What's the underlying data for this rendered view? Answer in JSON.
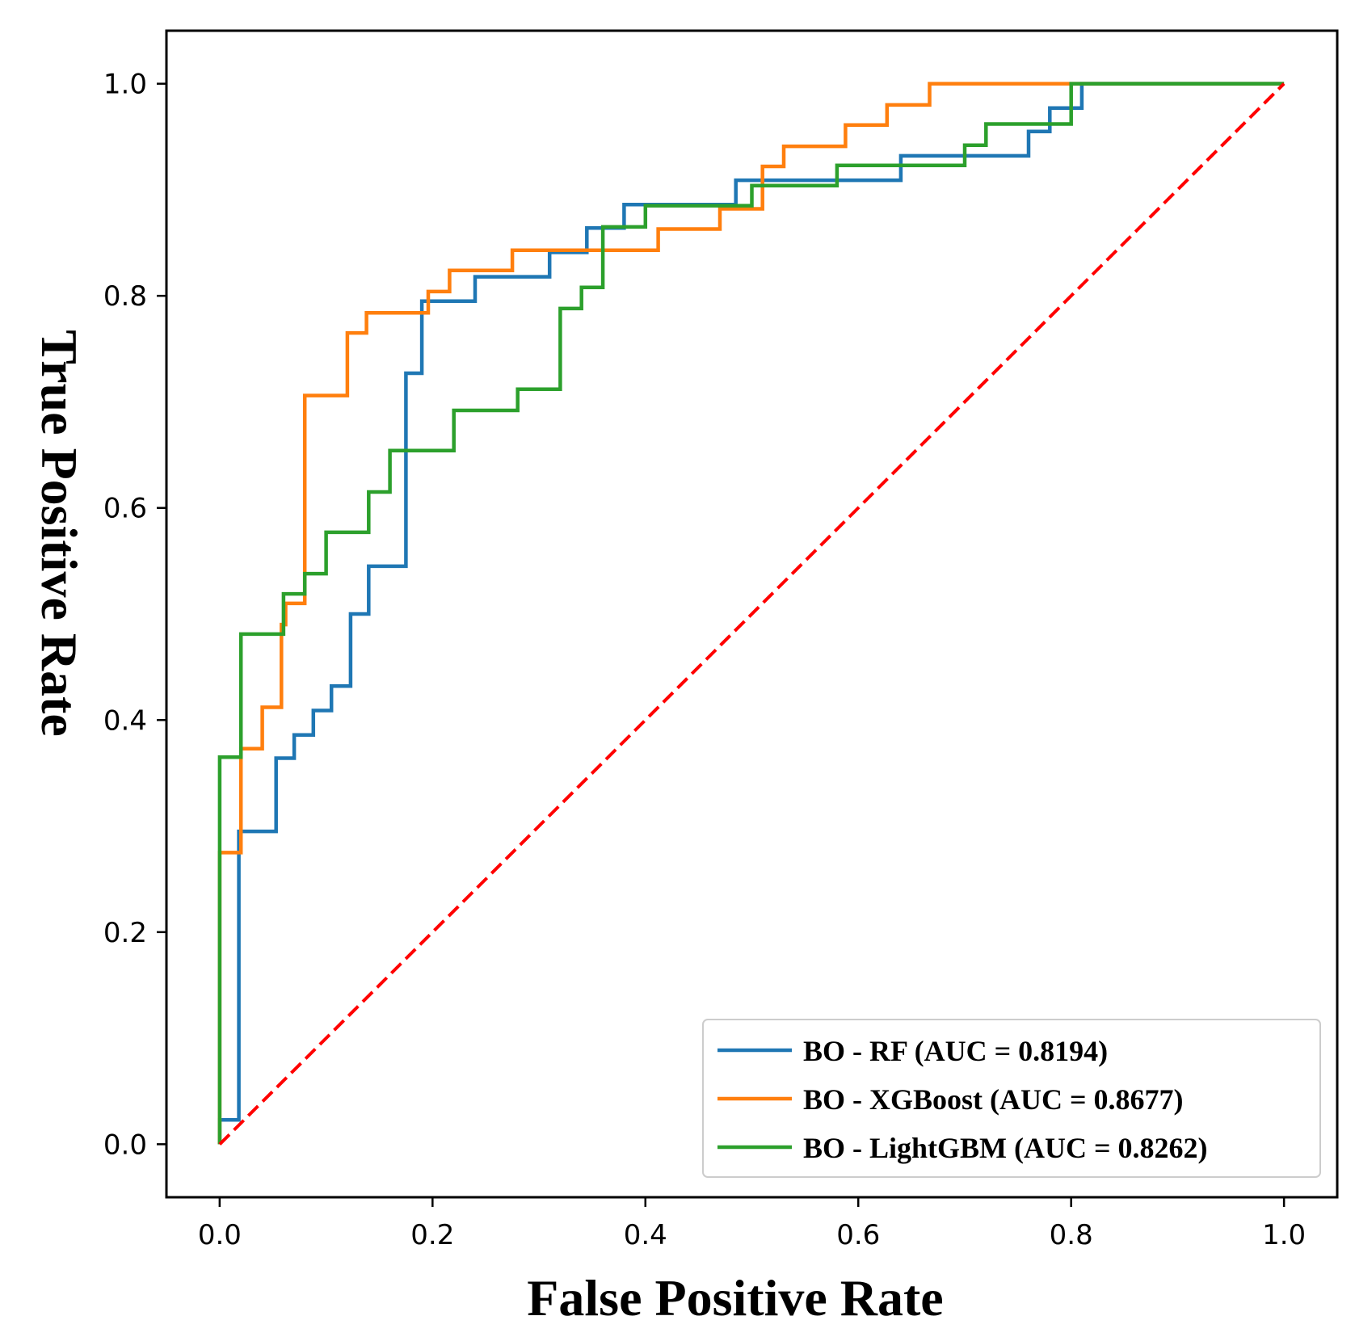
{
  "chart_data": {
    "type": "line",
    "title": "",
    "xlabel": "False Positive Rate",
    "ylabel": "True Positive Rate",
    "xlim": [
      -0.05,
      1.05
    ],
    "ylim": [
      -0.05,
      1.05
    ],
    "xticks": [
      0.0,
      0.2,
      0.4,
      0.6,
      0.8,
      1.0
    ],
    "yticks": [
      0.0,
      0.2,
      0.4,
      0.6,
      0.8,
      1.0
    ],
    "xtick_labels": [
      "0.0",
      "0.2",
      "0.4",
      "0.6",
      "0.8",
      "1.0"
    ],
    "ytick_labels": [
      "0.0",
      "0.2",
      "0.4",
      "0.6",
      "0.8",
      "1.0"
    ],
    "grid": false,
    "legend_position": "bottom-right",
    "series": [
      {
        "name": "BO - RF (AUC = 0.8194)",
        "color": "#1f77b4",
        "style": "solid",
        "x": [
          0.0,
          0.0,
          0.018,
          0.018,
          0.053,
          0.053,
          0.07,
          0.07,
          0.088,
          0.088,
          0.105,
          0.105,
          0.123,
          0.123,
          0.14,
          0.14,
          0.175,
          0.175,
          0.19,
          0.19,
          0.24,
          0.24,
          0.31,
          0.31,
          0.345,
          0.345,
          0.38,
          0.38,
          0.485,
          0.485,
          0.64,
          0.64,
          0.76,
          0.76,
          0.78,
          0.78,
          0.81,
          0.81,
          1.0
        ],
        "y": [
          0.0,
          0.023,
          0.023,
          0.295,
          0.295,
          0.364,
          0.364,
          0.386,
          0.386,
          0.409,
          0.409,
          0.432,
          0.432,
          0.5,
          0.5,
          0.545,
          0.545,
          0.727,
          0.727,
          0.795,
          0.795,
          0.818,
          0.818,
          0.841,
          0.841,
          0.864,
          0.864,
          0.886,
          0.886,
          0.909,
          0.909,
          0.932,
          0.932,
          0.955,
          0.955,
          0.977,
          0.977,
          1.0,
          1.0
        ]
      },
      {
        "name": "BO - XGBoost (AUC = 0.8677)",
        "color": "#ff7f0e",
        "style": "solid",
        "x": [
          0.0,
          0.0,
          0.02,
          0.02,
          0.04,
          0.04,
          0.058,
          0.058,
          0.062,
          0.062,
          0.08,
          0.08,
          0.12,
          0.12,
          0.138,
          0.138,
          0.196,
          0.196,
          0.216,
          0.216,
          0.275,
          0.275,
          0.412,
          0.412,
          0.47,
          0.47,
          0.51,
          0.51,
          0.53,
          0.53,
          0.588,
          0.588,
          0.627,
          0.627,
          0.667,
          0.667,
          0.8,
          0.8,
          1.0
        ],
        "y": [
          0.0,
          0.275,
          0.275,
          0.373,
          0.373,
          0.412,
          0.412,
          0.49,
          0.49,
          0.51,
          0.51,
          0.706,
          0.706,
          0.765,
          0.765,
          0.784,
          0.784,
          0.804,
          0.804,
          0.824,
          0.824,
          0.843,
          0.843,
          0.863,
          0.863,
          0.882,
          0.882,
          0.922,
          0.922,
          0.941,
          0.941,
          0.961,
          0.961,
          0.98,
          0.98,
          1.0,
          1.0,
          1.0,
          1.0
        ]
      },
      {
        "name": "BO - LightGBM (AUC = 0.8262)",
        "color": "#2ca02c",
        "style": "solid",
        "x": [
          0.0,
          0.0,
          0.02,
          0.02,
          0.06,
          0.06,
          0.08,
          0.08,
          0.1,
          0.1,
          0.14,
          0.14,
          0.16,
          0.16,
          0.22,
          0.22,
          0.28,
          0.28,
          0.32,
          0.32,
          0.34,
          0.34,
          0.36,
          0.36,
          0.4,
          0.4,
          0.5,
          0.5,
          0.58,
          0.58,
          0.7,
          0.7,
          0.72,
          0.72,
          0.8,
          0.8,
          1.0
        ],
        "y": [
          0.0,
          0.365,
          0.365,
          0.481,
          0.481,
          0.519,
          0.519,
          0.538,
          0.538,
          0.577,
          0.577,
          0.615,
          0.615,
          0.654,
          0.654,
          0.692,
          0.692,
          0.712,
          0.712,
          0.788,
          0.788,
          0.808,
          0.808,
          0.865,
          0.865,
          0.885,
          0.885,
          0.904,
          0.904,
          0.923,
          0.923,
          0.942,
          0.942,
          0.962,
          0.962,
          1.0,
          1.0
        ]
      },
      {
        "name": "reference",
        "color": "#ff0000",
        "style": "dashed",
        "x": [
          0.0,
          1.0
        ],
        "y": [
          0.0,
          1.0
        ]
      }
    ],
    "legend": [
      "BO - RF (AUC = 0.8194)",
      "BO - XGBoost (AUC = 0.8677)",
      "BO - LightGBM (AUC = 0.8262)"
    ]
  }
}
